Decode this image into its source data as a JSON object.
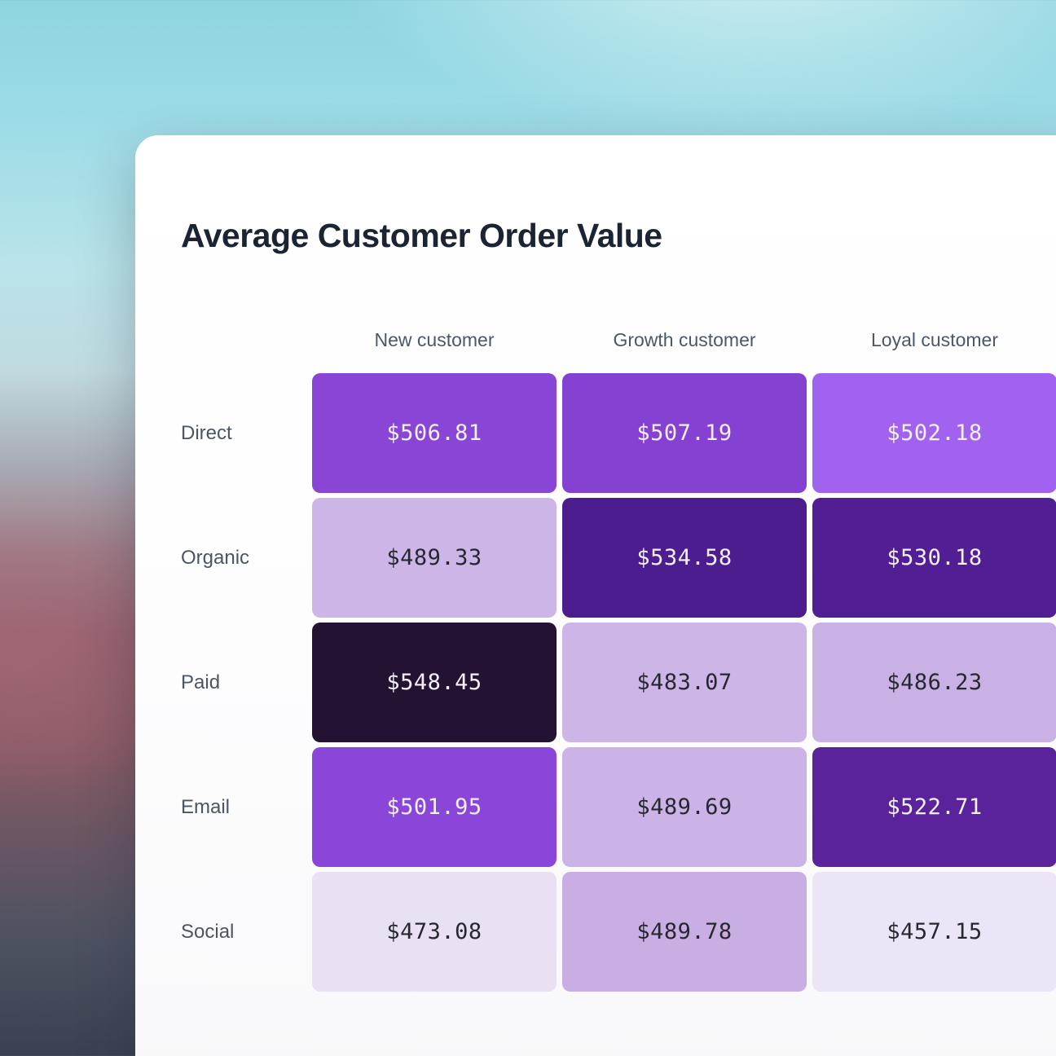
{
  "card": {
    "title": "Average Customer Order Value"
  },
  "chart_data": {
    "type": "heatmap",
    "title": "Average Customer Order Value",
    "columns": [
      "New customer",
      "Growth customer",
      "Loyal customer"
    ],
    "rows": [
      "Direct",
      "Organic",
      "Paid",
      "Email",
      "Social"
    ],
    "values": [
      [
        506.81,
        507.19,
        502.18
      ],
      [
        489.33,
        534.58,
        530.18
      ],
      [
        548.45,
        483.07,
        486.23
      ],
      [
        501.95,
        489.69,
        522.71
      ],
      [
        473.08,
        489.78,
        457.15
      ]
    ],
    "value_format": "USD ($)",
    "min_value": 457.15,
    "max_value": 548.45,
    "colorscale": {
      "lowest": "#ece4f7",
      "highest": "#241233"
    },
    "cells": [
      [
        {
          "label": "$506.81",
          "bg": "#8945d6",
          "fg": "#f5f0fa"
        },
        {
          "label": "$507.19",
          "bg": "#8541d2",
          "fg": "#f5f0fa"
        },
        {
          "label": "$502.18",
          "bg": "#a262f0",
          "fg": "#f5f0fa"
        }
      ],
      [
        {
          "label": "$489.33",
          "bg": "#cdb5e8",
          "fg": "#27272f"
        },
        {
          "label": "$534.58",
          "bg": "#4c1d8f",
          "fg": "#f5f0fa"
        },
        {
          "label": "$530.18",
          "bg": "#511e93",
          "fg": "#f5f0fa"
        }
      ],
      [
        {
          "label": "$548.45",
          "bg": "#241233",
          "fg": "#f5f0fa"
        },
        {
          "label": "$483.07",
          "bg": "#cdb5e8",
          "fg": "#27272f"
        },
        {
          "label": "$486.23",
          "bg": "#cab1e5",
          "fg": "#27272f"
        }
      ],
      [
        {
          "label": "$501.95",
          "bg": "#8a46d8",
          "fg": "#f5f0fa"
        },
        {
          "label": "$489.69",
          "bg": "#cbb2e7",
          "fg": "#27272f"
        },
        {
          "label": "$522.71",
          "bg": "#5a239c",
          "fg": "#f5f0fa"
        }
      ],
      [
        {
          "label": "$473.08",
          "bg": "#e9e0f4",
          "fg": "#27272f"
        },
        {
          "label": "$489.78",
          "bg": "#c9aee3",
          "fg": "#27272f"
        },
        {
          "label": "$457.15",
          "bg": "#ece4f7",
          "fg": "#27272f"
        }
      ]
    ]
  }
}
